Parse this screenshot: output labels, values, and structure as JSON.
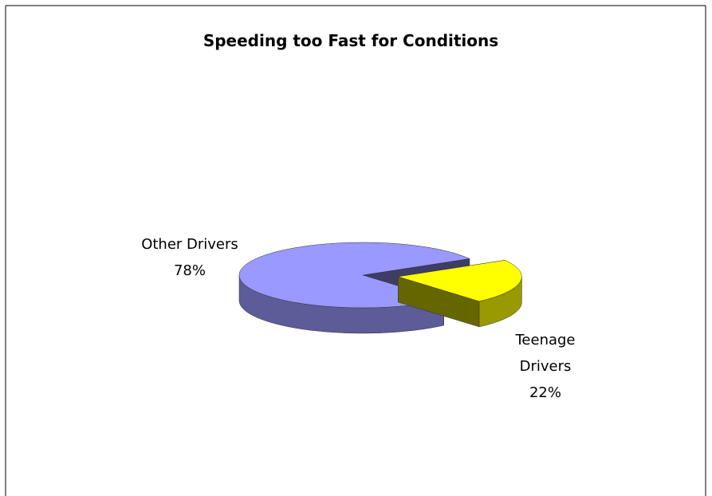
{
  "chart_data": {
    "type": "pie",
    "title": "Speeding too Fast for Conditions",
    "categories": [
      "Other Drivers",
      "Teenage Drivers"
    ],
    "values": [
      78,
      22
    ],
    "value_labels": [
      "78%",
      "22%"
    ],
    "colors": [
      "#9999ff",
      "#ffff00"
    ]
  }
}
